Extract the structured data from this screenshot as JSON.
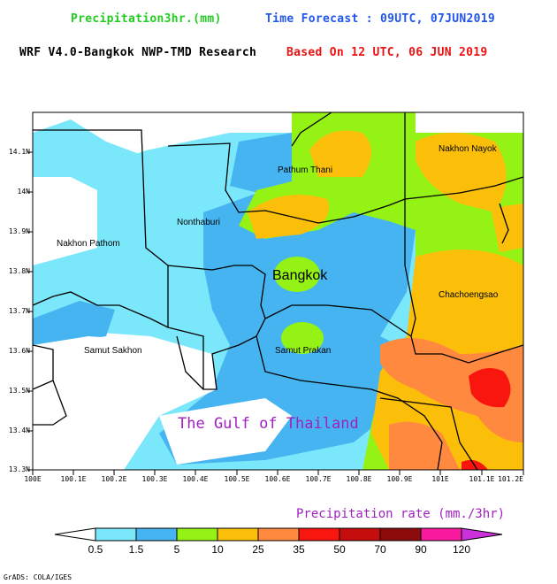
{
  "header": {
    "variable": "Precipitation3hr.(mm)",
    "forecast": "Time Forecast : 09UTC, 07JUN2019",
    "model": "WRF V4.0-Bangkok NWP-TMD Research",
    "based_on": "Based On 12 UTC, 06 JUN 2019"
  },
  "map": {
    "provinces": [
      "Nakhon Nayok",
      "Pathum Thani",
      "Nonthaburi",
      "Nakhon Pathom",
      "Bangkok",
      "Chachoengsao",
      "Samut Sakhon",
      "Samut Prakan"
    ],
    "sea_label": "The Gulf of Thailand",
    "lat_ticks": [
      "14.1N",
      "14N",
      "13.9N",
      "13.8N",
      "13.7N",
      "13.6N",
      "13.5N",
      "13.4N",
      "13.3N"
    ],
    "lon_ticks": [
      "100E",
      "100.1E",
      "100.2E",
      "100.3E",
      "100.4E",
      "100.5E",
      "100.6E",
      "100.7E",
      "100.8E",
      "100.9E",
      "101E",
      "101.1E",
      "101.2E"
    ]
  },
  "colorbar": {
    "title": "Precipitation rate (mm./3hr)",
    "labels": [
      "0.5",
      "1.5",
      "5",
      "10",
      "25",
      "35",
      "50",
      "70",
      "90",
      "120"
    ],
    "colors": [
      "#ffffff",
      "#7be7fb",
      "#46b4f0",
      "#94f215",
      "#fbbf0a",
      "#ff8a3f",
      "#f8160e",
      "#c50d0d",
      "#8c0b0b",
      "#f81ba0",
      "#cc2fdc"
    ]
  },
  "credit": "GrADS: COLA/IGES"
}
